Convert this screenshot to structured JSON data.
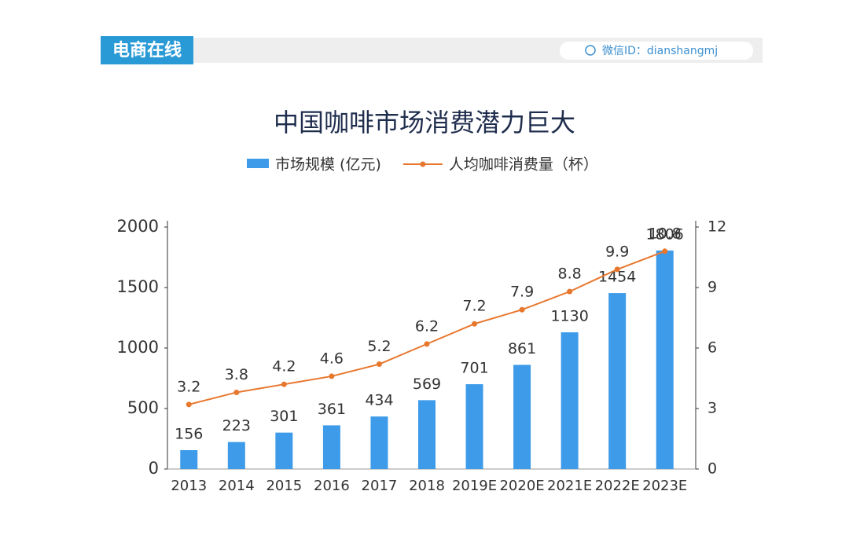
{
  "header": {
    "logo": "电商在线",
    "wechat": "微信ID：dianshangmj"
  },
  "chart_data": {
    "type": "bar-line",
    "title": "中国咖啡市场消费潜力巨大",
    "categories": [
      "2013",
      "2014",
      "2015",
      "2016",
      "2017",
      "2018",
      "2019E",
      "2020E",
      "2021E",
      "2022E",
      "2023E"
    ],
    "series": [
      {
        "name": "市场规模 (亿元)",
        "color": "#3d9be9",
        "type": "bar",
        "values": [
          156,
          223,
          301,
          361,
          434,
          569,
          701,
          861,
          1130,
          1454,
          1806
        ]
      },
      {
        "name": "人均咖啡消费量（杯）",
        "color": "#e8772e",
        "type": "line",
        "axis": "y2",
        "values": [
          3.2,
          3.8,
          4.2,
          4.6,
          5.2,
          6.2,
          7.2,
          7.9,
          8.8,
          9.9,
          10.8
        ]
      }
    ],
    "ylim": [
      0,
      2000
    ],
    "yticks": [
      0,
      500,
      1000,
      1500,
      2000
    ],
    "y2lim": [
      0,
      12
    ],
    "y2ticks": [
      0,
      3,
      6,
      9,
      12
    ]
  }
}
